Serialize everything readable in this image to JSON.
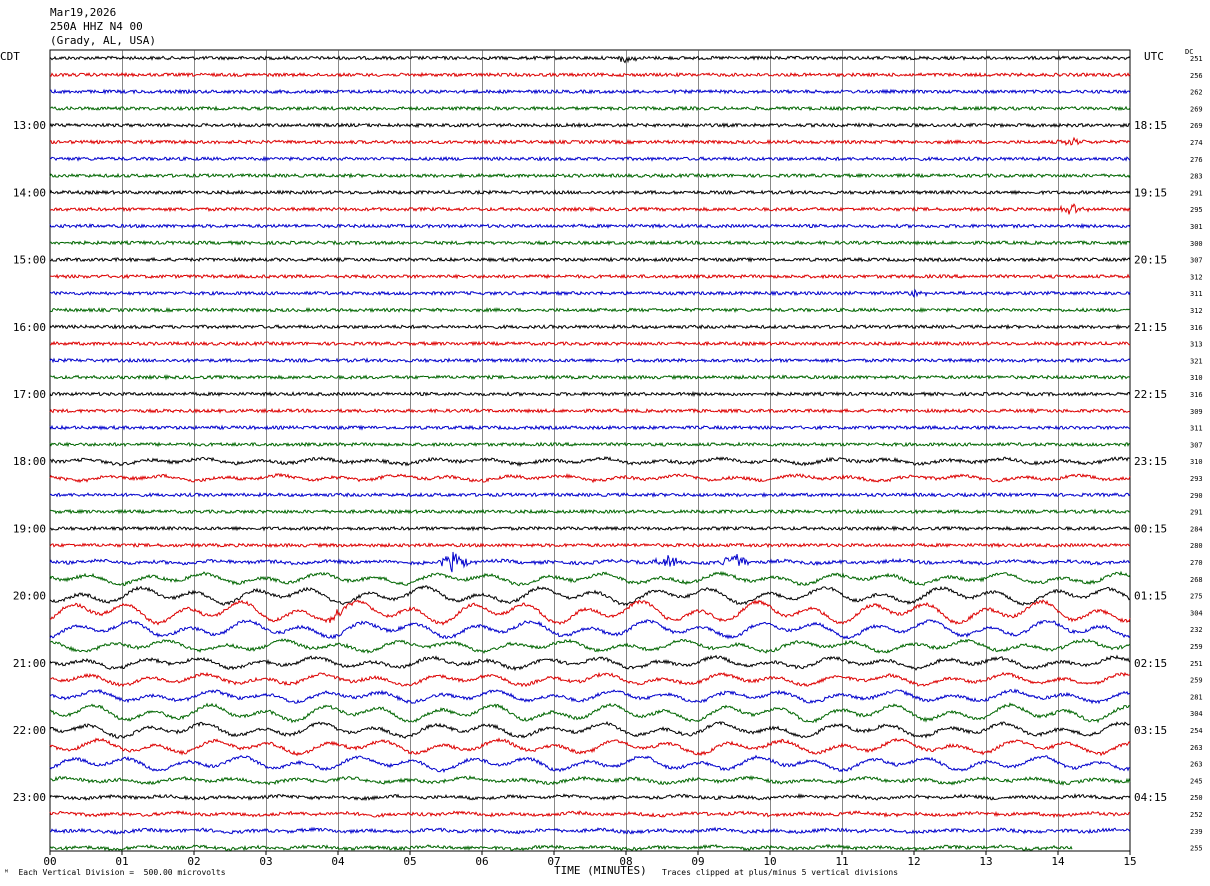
{
  "header": {
    "date": "Mar19,2026",
    "station": "250A HHZ N4 00",
    "location": "(Grady, AL, USA)"
  },
  "left_timezone": "CDT",
  "right_timezone": "UTC",
  "dc_label": "DC",
  "footer": {
    "scale_note": "Each Vertical Division =  500.00 microvolts",
    "clip_note": "Traces clipped at plus/minus 5 vertical divisions"
  },
  "colors": {
    "background": "#ffffff",
    "grid": "#000000",
    "trace_cycle": [
      "#000000",
      "#dd0000",
      "#0000cc",
      "#006600"
    ]
  },
  "chart_data": {
    "type": "helicorder",
    "title": "",
    "xlabel": "TIME (MINUTES)",
    "x_ticks": [
      "00",
      "01",
      "02",
      "03",
      "04",
      "05",
      "06",
      "07",
      "08",
      "09",
      "10",
      "11",
      "12",
      "13",
      "14",
      "15"
    ],
    "xlim": [
      0,
      15
    ],
    "minutes_per_line": 15,
    "left_hour_labels": [
      "13:00",
      "14:00",
      "15:00",
      "16:00",
      "17:00",
      "18:00",
      "19:00",
      "20:00",
      "21:00",
      "22:00",
      "23:00"
    ],
    "right_hour_labels": [
      "18:15",
      "19:15",
      "20:15",
      "21:15",
      "22:15",
      "23:15",
      "00:15",
      "01:15",
      "02:15",
      "03:15",
      "04:15"
    ],
    "first_hour_label_line": 4,
    "dc_offsets": [
      251,
      256,
      262,
      269,
      269,
      274,
      276,
      283,
      291,
      295,
      301,
      300,
      307,
      312,
      311,
      312,
      316,
      313,
      321,
      310,
      316,
      309,
      311,
      307,
      310,
      293,
      290,
      291,
      284,
      280,
      270,
      268,
      275,
      304,
      232,
      259,
      251,
      259,
      281,
      304,
      254,
      263,
      263,
      245,
      250,
      252,
      239,
      255
    ],
    "line_activity": [
      1,
      1,
      1,
      1,
      1,
      1,
      1,
      1,
      1,
      1,
      1,
      1,
      1,
      1,
      1,
      1,
      1,
      1,
      1,
      1,
      1,
      1,
      1,
      1,
      2,
      2,
      1,
      1,
      1,
      1,
      1.5,
      3,
      4,
      5,
      4,
      3,
      3,
      3,
      3,
      4,
      3.5,
      3.5,
      3.5,
      2,
      1.5,
      1.5,
      1.5,
      1.5
    ],
    "bursts": [
      {
        "line": 0,
        "minute": 8.0,
        "amp": 1.5
      },
      {
        "line": 5,
        "minute": 14.2,
        "amp": 1.5
      },
      {
        "line": 9,
        "minute": 14.2,
        "amp": 2
      },
      {
        "line": 14,
        "minute": 12.0,
        "amp": 1.5
      },
      {
        "line": 30,
        "minute": 5.6,
        "amp": 4
      },
      {
        "line": 30,
        "minute": 8.6,
        "amp": 3
      },
      {
        "line": 30,
        "minute": 9.5,
        "amp": 4
      },
      {
        "line": 33,
        "minute": 4.0,
        "amp": 2
      }
    ],
    "last_line_end_minute": 14.2
  }
}
